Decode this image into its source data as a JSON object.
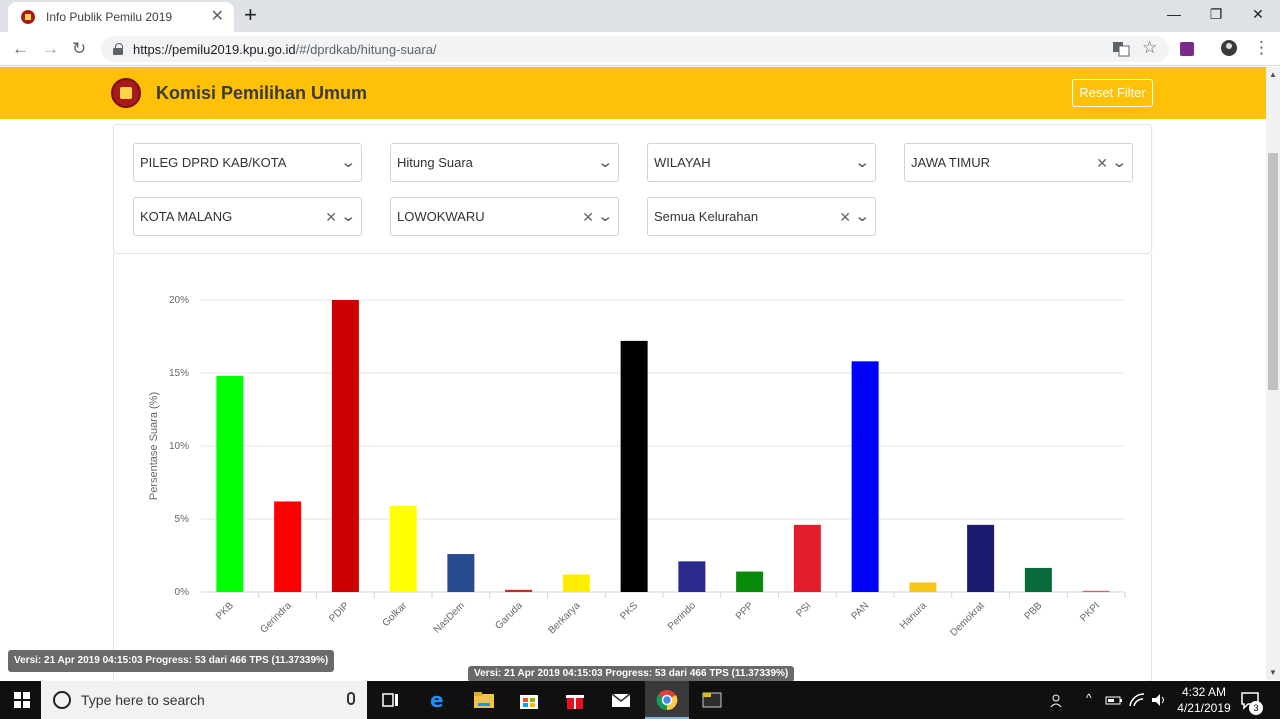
{
  "browser": {
    "tab_title": "Info Publik Pemilu 2019",
    "url_host": "https://pemilu2019.kpu.go.id",
    "url_path": "/#/dprdkab/hitung-suara/"
  },
  "header": {
    "title": "Komisi Pemilihan Umum",
    "reset_label": "Reset Filter"
  },
  "filters": {
    "type": "PILEG DPRD KAB/KOTA",
    "mode": "Hitung Suara",
    "scope": "WILAYAH",
    "province": "JAWA TIMUR",
    "city": "KOTA MALANG",
    "district": "LOWOKWARU",
    "village": "Semua Kelurahan"
  },
  "chart_data": {
    "type": "bar",
    "ylabel": "Persentase Suara (%)",
    "ylim": [
      0,
      20
    ],
    "yticks": [
      "0%",
      "5%",
      "10%",
      "15%",
      "20%"
    ],
    "grid": true,
    "categories": [
      "PKB",
      "Gerindra",
      "PDIP",
      "Golkar",
      "NasDem",
      "Garuda",
      "Berkarya",
      "PKS",
      "Perindo",
      "PPP",
      "PSI",
      "PAN",
      "Hanura",
      "Demokrat",
      "PBB",
      "PKPI"
    ],
    "values": [
      14.8,
      6.2,
      20.0,
      5.9,
      2.6,
      0.15,
      1.2,
      17.2,
      2.1,
      1.4,
      4.6,
      15.8,
      0.65,
      4.6,
      1.65,
      0.08
    ],
    "colors": [
      "#00ff00",
      "#ff0000",
      "#cc0000",
      "#ffff00",
      "#284b8f",
      "#cc2a2a",
      "#ffee00",
      "#000000",
      "#2a2a8c",
      "#0a8a0a",
      "#e31c2b",
      "#0000ff",
      "#f5c518",
      "#1a1a6e",
      "#0a6b3a",
      "#e06060"
    ]
  },
  "version_text": "Versi: 21 Apr 2019 04:15:03 Progress: 53 dari 466 TPS (11.37339%)",
  "taskbar": {
    "search_placeholder": "Type here to search",
    "time": "4:32 AM",
    "date": "4/21/2019",
    "notifications": "3"
  }
}
